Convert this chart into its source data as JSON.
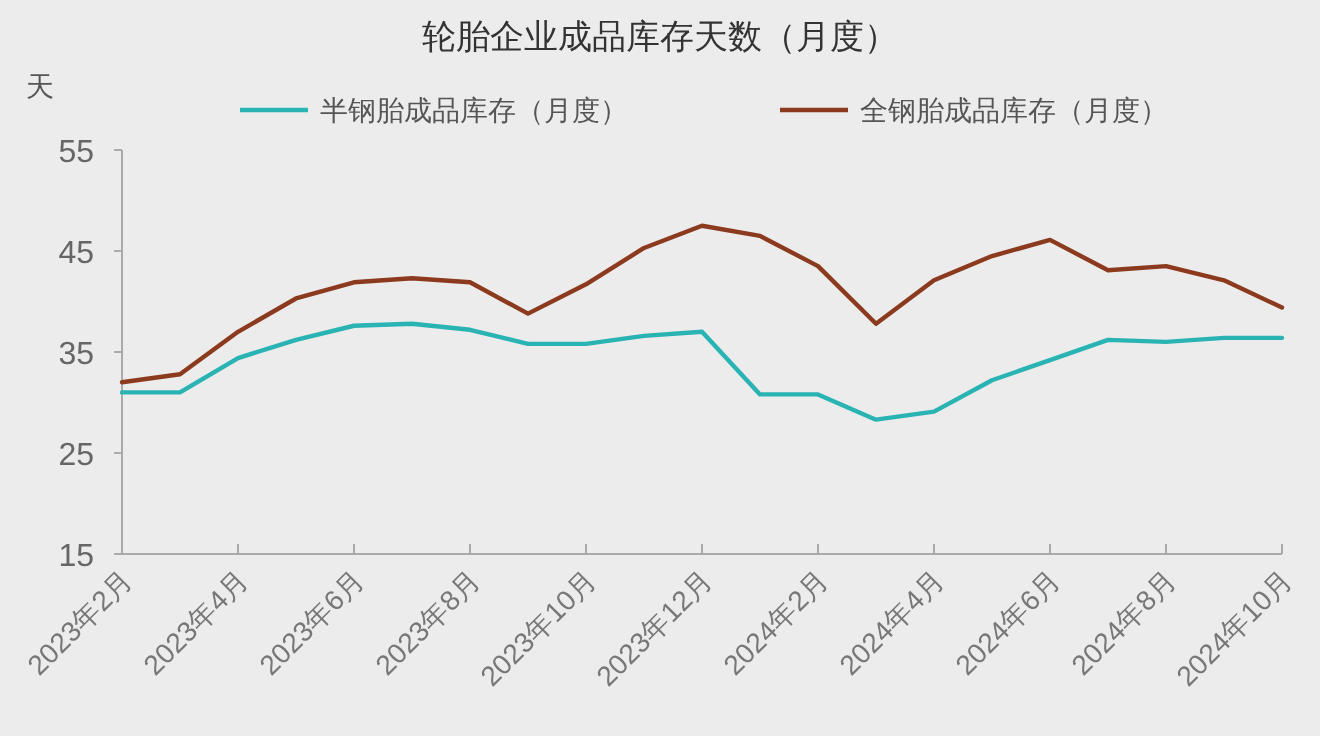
{
  "chart_data": {
    "type": "line",
    "title": "轮胎企业成品库存天数（月度）",
    "ylabel": "天",
    "categories": [
      "2023年2月",
      null,
      "2023年4月",
      null,
      "2023年6月",
      null,
      "2023年8月",
      null,
      "2023年10月",
      null,
      "2023年12月",
      null,
      "2024年2月",
      null,
      "2024年4月",
      null,
      "2024年6月",
      null,
      "2024年8月",
      null,
      "2024年10月"
    ],
    "series": [
      {
        "name": "半钢胎成品库存（月度）",
        "color": "#2ab3b3",
        "values": [
          31.0,
          31.0,
          34.4,
          36.2,
          37.6,
          37.8,
          37.2,
          35.8,
          35.8,
          36.6,
          37.0,
          30.8,
          30.8,
          28.3,
          29.1,
          32.2,
          34.2,
          36.2,
          36.0,
          36.4,
          36.4
        ]
      },
      {
        "name": "全钢胎成品库存（月度）",
        "color": "#8b3a1e",
        "values": [
          32.0,
          32.8,
          37.0,
          40.3,
          41.9,
          42.3,
          41.9,
          38.8,
          41.7,
          45.3,
          47.5,
          46.5,
          43.5,
          37.8,
          42.1,
          44.5,
          46.1,
          43.1,
          43.5,
          42.1,
          39.4
        ]
      }
    ],
    "ylim": [
      15,
      55
    ],
    "yticks": [
      15,
      25,
      35,
      45,
      55
    ],
    "grid": false,
    "legend": "top",
    "marker": "none",
    "line_style": "solid"
  }
}
